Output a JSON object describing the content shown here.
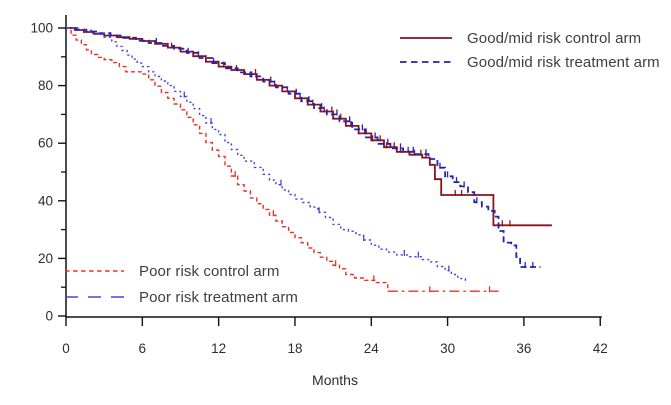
{
  "figure": {
    "background": "#ffffff",
    "axis_color": "#111111",
    "tick_label_color": "#2e2e2e",
    "legend_text_color": "#3f3f3f"
  },
  "chart_data": {
    "type": "line",
    "subtype": "kaplan-meier-step",
    "title": "",
    "xlabel": "Months",
    "ylabel": "",
    "xlim": [
      0,
      42
    ],
    "ylim": [
      0,
      100
    ],
    "x_ticks": [
      0,
      6,
      12,
      18,
      24,
      30,
      36,
      42
    ],
    "y_ticks_major": [
      0,
      20,
      40,
      60,
      80,
      100
    ],
    "y_ticks_minor": [
      10,
      30,
      50,
      70,
      90
    ],
    "grid": false,
    "legend_positions": [
      "top-right",
      "bottom-left"
    ],
    "series": [
      {
        "id": "good-mid-risk-control-arm",
        "name": "Good/mid risk control arm",
        "color": "#86151c",
        "line_style": "solid",
        "stroke_width": 1.8,
        "dash": null,
        "legend_dash": null,
        "points": [
          [
            0,
            100
          ],
          [
            0.7,
            99.3
          ],
          [
            1.4,
            98.6
          ],
          [
            2.2,
            98
          ],
          [
            3,
            97.4
          ],
          [
            4,
            96.8
          ],
          [
            5,
            96.2
          ],
          [
            6,
            95.5
          ],
          [
            7,
            94.5
          ],
          [
            8,
            93.2
          ],
          [
            9,
            91.8
          ],
          [
            10,
            90.2
          ],
          [
            11,
            88.3
          ],
          [
            12,
            86.6
          ],
          [
            13,
            85.4
          ],
          [
            14,
            84
          ],
          [
            15,
            82
          ],
          [
            16,
            80
          ],
          [
            17,
            78
          ],
          [
            18,
            75.6
          ],
          [
            19,
            73.4
          ],
          [
            20,
            71
          ],
          [
            21,
            68.5
          ],
          [
            22,
            66
          ],
          [
            23,
            63.4
          ],
          [
            24,
            61
          ],
          [
            25,
            58.6
          ],
          [
            26,
            57
          ],
          [
            27,
            56
          ],
          [
            28,
            55
          ],
          [
            28.6,
            52.5
          ],
          [
            29,
            47.5
          ],
          [
            29.5,
            42
          ],
          [
            33.6,
            31.5
          ],
          [
            38.2,
            31.5
          ]
        ],
        "censor_marks": [
          8.3,
          10.4,
          12.4,
          13.4,
          14.9,
          16.4,
          17.4,
          18.4,
          19.4,
          20.3,
          20.9,
          21.6,
          22.4,
          23,
          23.6,
          24.1,
          24.7,
          25.2,
          25.8,
          26.3,
          26.9,
          27.4,
          27.9,
          28.3,
          30.6,
          31.1,
          34.3,
          34.9
        ]
      },
      {
        "id": "good-mid-risk-treatment-arm",
        "name": "Good/mid risk treatment arm",
        "color": "#2323b0",
        "line_style": "dashed",
        "stroke_width": 1.8,
        "dash": [
          6,
          3.5
        ],
        "legend_dash": [
          6.5,
          4.5
        ],
        "points": [
          [
            0,
            100
          ],
          [
            0.8,
            99.4
          ],
          [
            1.6,
            98.8
          ],
          [
            2.5,
            98.2
          ],
          [
            3.5,
            97.4
          ],
          [
            4.5,
            96.6
          ],
          [
            5.5,
            95.6
          ],
          [
            6.5,
            94.8
          ],
          [
            7.5,
            93.8
          ],
          [
            8.5,
            92.8
          ],
          [
            9.5,
            91.4
          ],
          [
            10.5,
            89.6
          ],
          [
            11.5,
            87.8
          ],
          [
            12.5,
            86
          ],
          [
            13.5,
            84.6
          ],
          [
            14.5,
            83.2
          ],
          [
            15.5,
            81.4
          ],
          [
            16.5,
            79.4
          ],
          [
            17.5,
            77.2
          ],
          [
            18.5,
            74.6
          ],
          [
            19.5,
            72.2
          ],
          [
            20.5,
            70
          ],
          [
            21.5,
            67.6
          ],
          [
            22.5,
            64.8
          ],
          [
            23.5,
            62
          ],
          [
            24.5,
            59.8
          ],
          [
            25.5,
            58.2
          ],
          [
            26.5,
            57
          ],
          [
            27.5,
            56.2
          ],
          [
            28.5,
            54.5
          ],
          [
            29.2,
            51.5
          ],
          [
            29.8,
            48.5
          ],
          [
            30.4,
            46.5
          ],
          [
            31,
            45
          ],
          [
            31.6,
            43
          ],
          [
            32.1,
            39.5
          ],
          [
            32.7,
            38
          ],
          [
            33.2,
            36.5
          ],
          [
            33.7,
            34.5
          ],
          [
            34,
            29.5
          ],
          [
            34.4,
            25.5
          ],
          [
            35,
            24.5
          ],
          [
            35.4,
            20.5
          ],
          [
            35.7,
            17
          ],
          [
            37.3,
            17
          ]
        ],
        "censor_marks": [
          7.1,
          9.6,
          11.6,
          14.6,
          16.1,
          18.1,
          19.1,
          20.1,
          21.3,
          22.3,
          23.3,
          24.3,
          25.3,
          26.3,
          27.3,
          28.3,
          29.4,
          30,
          30.7,
          31.3,
          32.3,
          36.1,
          36.7
        ]
      },
      {
        "id": "poor-risk-control-arm",
        "name": "Poor risk control arm",
        "color": "#e73327",
        "line_style": "dashed",
        "stroke_width": 1.4,
        "dash": [
          4,
          2.8
        ],
        "dash2": [
          10,
          4,
          2.5,
          4
        ],
        "dash2_from": 25.3,
        "legend_dash": [
          4.5,
          3.5
        ],
        "points": [
          [
            0,
            100
          ],
          [
            0.4,
            97.5
          ],
          [
            0.8,
            95.8
          ],
          [
            1.2,
            94.2
          ],
          [
            1.6,
            92.4
          ],
          [
            2,
            90.8
          ],
          [
            2.5,
            89.8
          ],
          [
            3,
            89
          ],
          [
            3.6,
            88
          ],
          [
            4.2,
            86.6
          ],
          [
            4.7,
            84.8
          ],
          [
            6,
            84
          ],
          [
            6.5,
            82
          ],
          [
            7,
            79.8
          ],
          [
            7.5,
            77.6
          ],
          [
            8,
            75.6
          ],
          [
            8.5,
            73.6
          ],
          [
            9,
            71.6
          ],
          [
            9.5,
            69
          ],
          [
            10,
            66.4
          ],
          [
            10.5,
            63.4
          ],
          [
            11,
            60.2
          ],
          [
            11.5,
            57.6
          ],
          [
            12,
            55.4
          ],
          [
            12.5,
            52
          ],
          [
            13,
            48.6
          ],
          [
            13.5,
            45.6
          ],
          [
            14,
            43.4
          ],
          [
            14.5,
            41
          ],
          [
            15,
            39
          ],
          [
            15.5,
            37
          ],
          [
            16,
            35
          ],
          [
            16.5,
            33
          ],
          [
            17,
            31
          ],
          [
            17.5,
            29
          ],
          [
            18,
            27.2
          ],
          [
            18.5,
            25.4
          ],
          [
            19,
            23.6
          ],
          [
            19.5,
            22
          ],
          [
            20,
            20.4
          ],
          [
            20.5,
            19
          ],
          [
            21,
            17.6
          ],
          [
            21.5,
            16.4
          ],
          [
            22,
            14.4
          ],
          [
            22.7,
            13.2
          ],
          [
            23.5,
            12.4
          ],
          [
            24.4,
            11.6
          ],
          [
            25.3,
            8.6
          ],
          [
            34,
            8.6
          ]
        ],
        "censor_marks": [
          13.3,
          16.3,
          21.2,
          24.2,
          28.6,
          33.3
        ]
      },
      {
        "id": "poor-risk-treatment-arm",
        "name": "Poor risk treatment arm",
        "color": "#4343e6",
        "line_style": "dotted",
        "stroke_width": 1.4,
        "dash": [
          2.2,
          3
        ],
        "legend_dash": [
          13,
          10
        ],
        "points": [
          [
            0,
            100
          ],
          [
            1,
            99.2
          ],
          [
            2,
            98.2
          ],
          [
            3,
            96.8
          ],
          [
            3.6,
            95.2
          ],
          [
            4,
            93.6
          ],
          [
            4.4,
            92.2
          ],
          [
            4.8,
            90.6
          ],
          [
            5.2,
            89.2
          ],
          [
            5.6,
            87.8
          ],
          [
            6,
            86.6
          ],
          [
            6.5,
            84.8
          ],
          [
            7,
            83.2
          ],
          [
            7.5,
            81.6
          ],
          [
            8,
            80
          ],
          [
            8.5,
            78
          ],
          [
            9,
            76.2
          ],
          [
            9.5,
            74.2
          ],
          [
            10,
            72
          ],
          [
            10.5,
            69.6
          ],
          [
            11,
            67
          ],
          [
            11.5,
            64.8
          ],
          [
            12,
            63
          ],
          [
            12.5,
            60.2
          ],
          [
            13,
            57.8
          ],
          [
            13.5,
            55.8
          ],
          [
            14,
            53.8
          ],
          [
            14.8,
            51.6
          ],
          [
            15.5,
            49.2
          ],
          [
            16,
            47.2
          ],
          [
            16.5,
            45.6
          ],
          [
            17,
            43.8
          ],
          [
            17.5,
            42.2
          ],
          [
            18,
            40.6
          ],
          [
            18.6,
            39.4
          ],
          [
            19.2,
            37.8
          ],
          [
            19.8,
            36
          ],
          [
            20.4,
            34.2
          ],
          [
            21,
            31.8
          ],
          [
            21.6,
            30
          ],
          [
            22.2,
            29.4
          ],
          [
            22.8,
            28.2
          ],
          [
            23.4,
            26.4
          ],
          [
            24,
            24.6
          ],
          [
            24.6,
            23.2
          ],
          [
            25.2,
            22.2
          ],
          [
            26,
            21.2
          ],
          [
            27,
            20.6
          ],
          [
            28,
            19.6
          ],
          [
            28.6,
            18.8
          ],
          [
            29.2,
            17.2
          ],
          [
            29.8,
            15.8
          ],
          [
            30.3,
            14.4
          ],
          [
            30.8,
            13
          ],
          [
            31.4,
            11.8
          ]
        ],
        "censor_marks": [
          9.3,
          11.4,
          16.9,
          19.9,
          23.4,
          26.6,
          27.7,
          30.1
        ]
      }
    ]
  }
}
